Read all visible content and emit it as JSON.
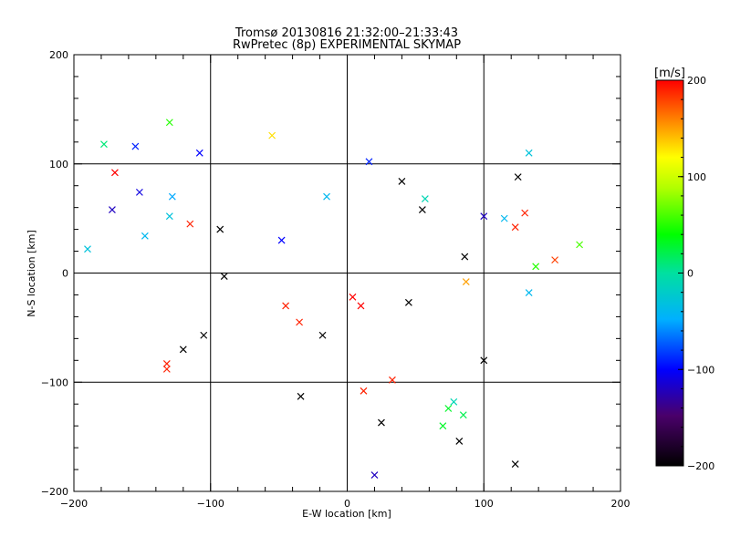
{
  "chart_data": {
    "type": "scatter",
    "title": "Tromsø 20130816 21:32:00–21:33:43",
    "subtitle": "RwPretec (8p) EXPERIMENTAL SKYMAP",
    "xlabel": "E-W location [km]",
    "ylabel": "N-S location [km]",
    "xlim": [
      -200,
      200
    ],
    "ylim": [
      -200,
      200
    ],
    "xticks": [
      "−200",
      "−100",
      "0",
      "100",
      "200"
    ],
    "yticks": [
      "−200",
      "−100",
      "0",
      "100",
      "200"
    ],
    "grid": true,
    "colorbar": {
      "label": "[m/s]",
      "range": [
        -200,
        200
      ],
      "ticks": [
        "200",
        "100",
        "0",
        "−100",
        "−200"
      ]
    },
    "series": [
      {
        "values": [
          {
            "x": -178,
            "y": 118,
            "v": 10
          },
          {
            "x": -155,
            "y": 116,
            "v": -90
          },
          {
            "x": -130,
            "y": 138,
            "v": 50
          },
          {
            "x": -108,
            "y": 110,
            "v": -100
          },
          {
            "x": -170,
            "y": 92,
            "v": 200
          },
          {
            "x": -152,
            "y": 74,
            "v": -110
          },
          {
            "x": -128,
            "y": 70,
            "v": -50
          },
          {
            "x": -115,
            "y": 45,
            "v": 190
          },
          {
            "x": -190,
            "y": 22,
            "v": -30
          },
          {
            "x": -172,
            "y": 58,
            "v": -120
          },
          {
            "x": -148,
            "y": 34,
            "v": -40
          },
          {
            "x": -130,
            "y": 52,
            "v": -30
          },
          {
            "x": -93,
            "y": 40,
            "v": -200
          },
          {
            "x": -90,
            "y": -3,
            "v": -200
          },
          {
            "x": -105,
            "y": -57,
            "v": -200
          },
          {
            "x": -132,
            "y": -83,
            "v": 190
          },
          {
            "x": -132,
            "y": -88,
            "v": 190
          },
          {
            "x": -120,
            "y": -70,
            "v": -200
          },
          {
            "x": -55,
            "y": 126,
            "v": 130
          },
          {
            "x": -48,
            "y": 30,
            "v": -100
          },
          {
            "x": -45,
            "y": -30,
            "v": 190
          },
          {
            "x": -35,
            "y": -45,
            "v": 190
          },
          {
            "x": -18,
            "y": -57,
            "v": -200
          },
          {
            "x": -34,
            "y": -113,
            "v": -200
          },
          {
            "x": -15,
            "y": 70,
            "v": -40
          },
          {
            "x": 16,
            "y": 102,
            "v": -90
          },
          {
            "x": 57,
            "y": 68,
            "v": -10
          },
          {
            "x": 40,
            "y": 84,
            "v": -200
          },
          {
            "x": 55,
            "y": 58,
            "v": -200
          },
          {
            "x": 12,
            "y": -108,
            "v": 190
          },
          {
            "x": 33,
            "y": -98,
            "v": 190
          },
          {
            "x": 25,
            "y": -137,
            "v": -200
          },
          {
            "x": 10,
            "y": -30,
            "v": 200
          },
          {
            "x": 4,
            "y": -22,
            "v": 200
          },
          {
            "x": 45,
            "y": -27,
            "v": -200
          },
          {
            "x": 70,
            "y": -140,
            "v": 30
          },
          {
            "x": 85,
            "y": -130,
            "v": 20
          },
          {
            "x": 78,
            "y": -118,
            "v": -10
          },
          {
            "x": 74,
            "y": -124,
            "v": 30
          },
          {
            "x": 82,
            "y": -154,
            "v": -200
          },
          {
            "x": 100,
            "y": -80,
            "v": -200
          },
          {
            "x": 123,
            "y": -175,
            "v": -200
          },
          {
            "x": 20,
            "y": -185,
            "v": -120
          },
          {
            "x": 100,
            "y": 52,
            "v": -120
          },
          {
            "x": 115,
            "y": 50,
            "v": -40
          },
          {
            "x": 123,
            "y": 42,
            "v": 190
          },
          {
            "x": 130,
            "y": 55,
            "v": 190
          },
          {
            "x": 125,
            "y": 88,
            "v": -200
          },
          {
            "x": 133,
            "y": 110,
            "v": -30
          },
          {
            "x": 138,
            "y": 6,
            "v": 50
          },
          {
            "x": 152,
            "y": 12,
            "v": 180
          },
          {
            "x": 170,
            "y": 26,
            "v": 60
          },
          {
            "x": 133,
            "y": -18,
            "v": -40
          },
          {
            "x": 87,
            "y": -8,
            "v": 150
          },
          {
            "x": 86,
            "y": 15,
            "v": -200
          }
        ]
      }
    ]
  }
}
